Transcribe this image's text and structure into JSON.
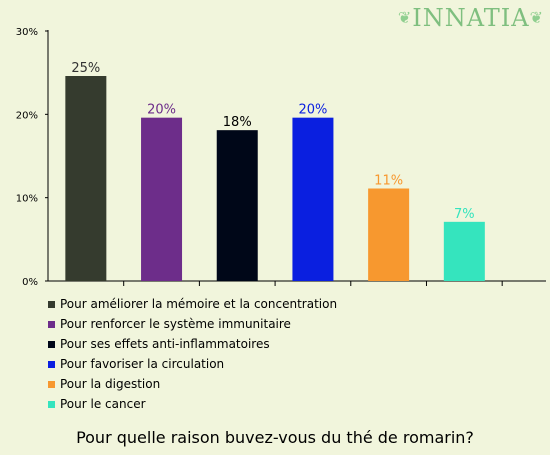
{
  "logo": {
    "text": "INNATIA",
    "leaf": "❦"
  },
  "chart_data": {
    "type": "bar",
    "title": "Pour quelle raison buvez-vous du thé de romarin?",
    "categories": [
      "Pour améliorer la mémoire et la concentration",
      "Pour renforcer le système immunitaire",
      "Pour ses effets anti-inflammatoires",
      "Pour favoriser la circulation",
      "Pour la digestion",
      "Pour le cancer"
    ],
    "values": [
      24.6,
      19.6,
      18.1,
      19.6,
      11.1,
      7.1
    ],
    "value_labels": [
      "25%",
      "20%",
      "18%",
      "20%",
      "11%",
      "7%"
    ],
    "colors": [
      "#353b2e",
      "#6d2d8a",
      "#000718",
      "#0a1fe0",
      "#f7982f",
      "#35e4be"
    ],
    "label_colors": [
      "#333333",
      "#6d2d8a",
      "#000000",
      "#0a1fe0",
      "#f7982f",
      "#35e4be"
    ],
    "yticks": [
      "0%",
      "10%",
      "20%",
      "30%"
    ],
    "ytick_values": [
      0,
      10,
      20,
      30
    ],
    "ylim": [
      0,
      30
    ],
    "legend_position": "bottom",
    "grid": false
  }
}
